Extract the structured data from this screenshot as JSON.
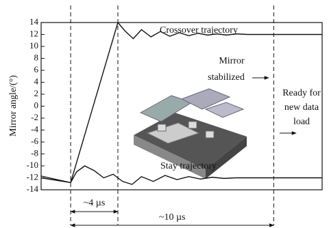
{
  "chart_data": {
    "type": "line",
    "y_label": "Mirror angle/(°)",
    "ylim": [
      -14,
      14
    ],
    "yticks": [
      -14,
      -12,
      -10,
      -8,
      -6,
      -4,
      -2,
      0,
      2,
      4,
      6,
      8,
      10,
      12,
      14
    ],
    "xlim": [
      -2.5,
      21.3
    ],
    "vlines": [
      0,
      4,
      17.2
    ],
    "series": [
      {
        "name": "Crossover trajectory",
        "color": "#111111",
        "x": [
          -2.5,
          0,
          4,
          4.6,
          5.3,
          6.0,
          6.8,
          7.6,
          8.4,
          9.2,
          10,
          10.8,
          11.6,
          12.4,
          13.2,
          14,
          15,
          16,
          17.2,
          21.3
        ],
        "values": [
          -12,
          -12.8,
          14,
          12.6,
          11.3,
          12.8,
          11.6,
          12.5,
          11.7,
          12.3,
          11.8,
          12.2,
          11.9,
          12.1,
          11.9,
          12.1,
          12,
          12,
          12,
          12
        ]
      },
      {
        "name": "Stay trajectory",
        "color": "#111111",
        "x": [
          -2.5,
          0,
          0.5,
          1.2,
          2.0,
          2.8,
          3.6,
          4.4,
          5.2,
          6,
          7,
          8,
          9,
          10,
          11,
          12,
          13,
          14,
          15,
          17.2,
          21.3
        ],
        "values": [
          -11.7,
          -12.8,
          -11,
          -10,
          -10.8,
          -12,
          -11.4,
          -12.6,
          -13.1,
          -11.8,
          -12.6,
          -11.6,
          -12.3,
          -11.8,
          -12.2,
          -11.9,
          -12.1,
          -12,
          -12,
          -12,
          -12
        ]
      }
    ],
    "annotations": {
      "short_interval": "~4 µs",
      "long_interval": "~10 µs",
      "stabilized": [
        "Mirror",
        "stabilized"
      ],
      "ready": [
        "Ready for",
        "new data",
        "load"
      ]
    }
  }
}
